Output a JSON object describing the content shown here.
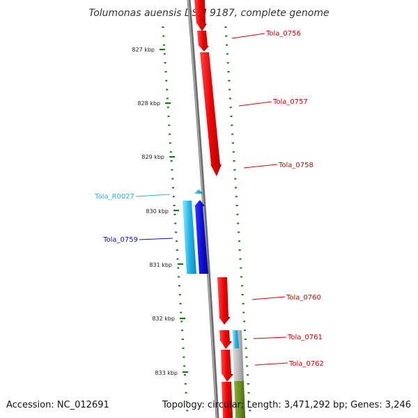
{
  "title": "Tolumonas auensis DSM 9187, complete genome",
  "footer": {
    "accession": "Accession: NC_012691",
    "topology": "Topology: circular; Length: 3,471,292 bp; Genes: 3,246"
  },
  "colors": {
    "forward_cds": "#ff1a1a",
    "reverse_cds": "#1414e6",
    "rna": "#1fb6e8",
    "highlight": "#b8b8b8",
    "feature_band": "#6b8f1f",
    "backbone": "#777777",
    "tick": "#1a7a1a"
  },
  "scale": {
    "ticks": [
      "827 kbp",
      "828 kbp",
      "829 kbp",
      "830 kbp",
      "831 kbp",
      "832 kbp",
      "833 kbp"
    ]
  },
  "genes": [
    {
      "id": "Tola_0756",
      "label": "Tola_0756",
      "strand": "forward",
      "type": "CDS",
      "color": "#dd0000"
    },
    {
      "id": "Tola_0757",
      "label": "Tola_0757",
      "strand": "forward",
      "type": "CDS",
      "color": "#dd0000"
    },
    {
      "id": "Tola_0758",
      "label": "Tola_0758",
      "strand": "forward",
      "type": "CDS",
      "color": "#dd0000"
    },
    {
      "id": "Tola_R0027",
      "label": "Tola_R0027",
      "strand": "reverse",
      "type": "RNA",
      "color": "#22b4de"
    },
    {
      "id": "Tola_0759",
      "label": "Tola_0759",
      "strand": "reverse",
      "type": "CDS",
      "color": "#1010b0"
    },
    {
      "id": "Tola_0760",
      "label": "Tola_0760",
      "strand": "forward",
      "type": "CDS",
      "color": "#dd0000"
    },
    {
      "id": "Tola_0761",
      "label": "Tola_0761",
      "strand": "forward",
      "type": "CDS",
      "color": "#dd0000"
    },
    {
      "id": "Tola_0762",
      "label": "Tola_0762",
      "strand": "forward",
      "type": "CDS",
      "color": "#dd0000"
    }
  ]
}
